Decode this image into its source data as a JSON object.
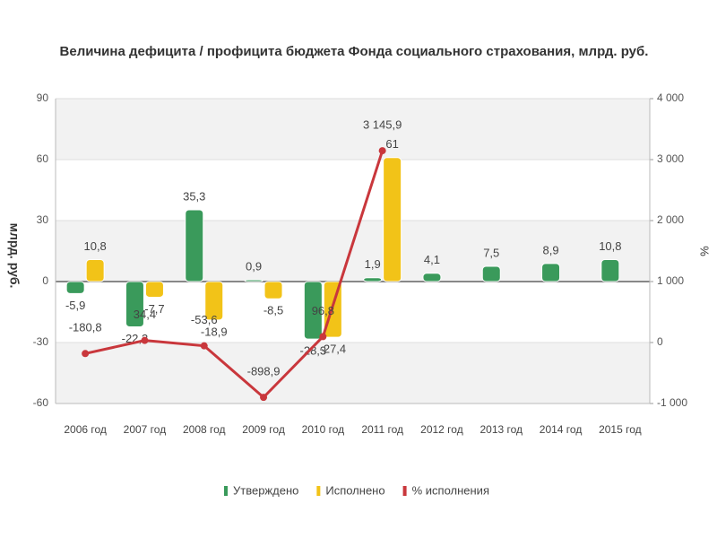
{
  "chart_data": {
    "type": "bar-line",
    "title": "Величина дефицита / профицита бюджета Фонда социального страхования, млрд. руб.",
    "y_label": "млрд. руб.",
    "y2_label": "%",
    "categories": [
      "2006 год",
      "2007 год",
      "2008 год",
      "2009 год",
      "2010 год",
      "2011 год",
      "2012 год",
      "2013 год",
      "2014 год",
      "2015 год"
    ],
    "series": [
      {
        "name": "Утверждено",
        "color": "#3a9a5b",
        "type": "bar",
        "values": [
          -5.9,
          -22.3,
          35.3,
          0.9,
          -28.3,
          1.9,
          4.1,
          7.5,
          8.9,
          10.8
        ],
        "value_labels": [
          "-5,9",
          "-22,3",
          "35,3",
          "0,9",
          "-28,3",
          "1,9",
          "4,1",
          "7,5",
          "8,9",
          "10,8"
        ]
      },
      {
        "name": "Исполнено",
        "color": "#f2c318",
        "type": "bar",
        "values": [
          10.8,
          -7.7,
          -18.9,
          -8.5,
          -27.4,
          61,
          null,
          null,
          null,
          null
        ],
        "value_labels": [
          "10,8",
          "-7,7",
          "-18,9",
          "-8,5",
          "-27,4",
          "61",
          null,
          null,
          null,
          null
        ]
      },
      {
        "name": "% исполнения",
        "color": "#c9373c",
        "type": "line",
        "axis": "y2",
        "values": [
          -180.8,
          34.4,
          -53.6,
          -898.9,
          96.8,
          3145.9,
          null,
          null,
          null,
          null
        ],
        "value_labels": [
          "-180,8",
          "34,4",
          "-53,6",
          "-898,9",
          "96,8",
          "3 145,9",
          null,
          null,
          null,
          null
        ]
      }
    ],
    "ylim": [
      -60,
      90
    ],
    "yticks": [
      -60,
      -30,
      0,
      30,
      60,
      90
    ],
    "y2lim": [
      -1000,
      4000
    ],
    "y2ticks": [
      {
        "value": -1000,
        "label": "-1 000"
      },
      0,
      {
        "value": 1000,
        "label": "1 000"
      },
      {
        "value": 2000,
        "label": "2 000"
      },
      {
        "value": 3000,
        "label": "3 000"
      },
      {
        "value": 4000,
        "label": "4 000"
      }
    ],
    "grid": true,
    "legend": "bottom"
  }
}
